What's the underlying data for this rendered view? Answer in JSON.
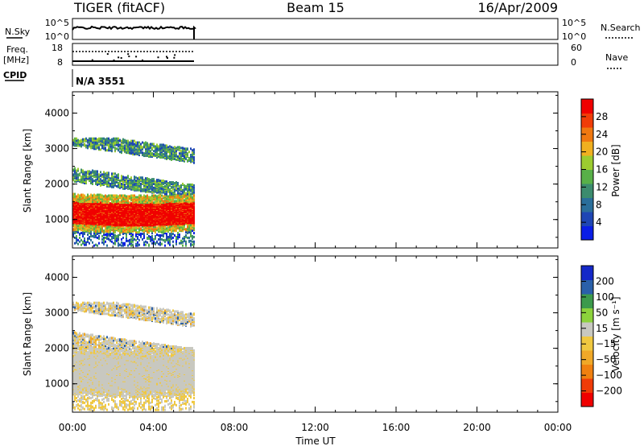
{
  "header": {
    "title": "TIGER (fitACF)",
    "beam": "Beam 15",
    "date": "16/Apr/2009"
  },
  "top_panels": {
    "nsky_label": "N.Sky",
    "nsky_ticks": [
      "10^5",
      "10^0"
    ],
    "nsearch_label": "N.Search",
    "nsearch_ticks": [
      "10^5",
      "10^0"
    ],
    "freq_label_1": "Freq.",
    "freq_label_2": "[MHz]",
    "freq_ticks": [
      "18",
      "8"
    ],
    "nave_label": "Nave",
    "nave_ticks": [
      "60",
      "0"
    ],
    "cpid_label": "CPID",
    "cpid_text": "N/A 3551"
  },
  "colors": {
    "power": [
      "#0a1ee6",
      "#1e46b4",
      "#2a6e9a",
      "#3c8c6e",
      "#58b048",
      "#9ccc30",
      "#f0b020",
      "#f07810",
      "#f03c08",
      "#f00000"
    ],
    "velocity": [
      "#f00000",
      "#f03c08",
      "#f08010",
      "#f0a828",
      "#f0c840",
      "#c8c8c0",
      "#8cd23c",
      "#3c9a4c",
      "#2a60aa",
      "#1428c8"
    ]
  },
  "chart_data": [
    {
      "type": "heatmap",
      "title": "",
      "quantity": "Power",
      "xlabel": "Time UT",
      "ylabel": "Slant Range [km]",
      "colorbar_label": "Power [dB]",
      "colorbar_ticks": [
        "28",
        "24",
        "20",
        "16",
        "12",
        "8",
        "4"
      ],
      "x_ticks": [
        "00:00",
        "04:00",
        "08:00",
        "12:00",
        "16:00",
        "20:00",
        "00:00"
      ],
      "y_ticks": [
        "4000",
        "3000",
        "2000",
        "1000"
      ],
      "xlim_hours": [
        0,
        24
      ],
      "ylim_km": [
        200,
        4600
      ],
      "data_coverage_hours": [
        0,
        6
      ],
      "main_band_km": [
        900,
        1500
      ],
      "main_band_power_db": 30
    },
    {
      "type": "heatmap",
      "title": "",
      "quantity": "Velocity",
      "xlabel": "Time UT",
      "ylabel": "Slant Range [km]",
      "colorbar_label": "Velocity [m s⁻¹]",
      "colorbar_ticks": [
        "200",
        "100",
        "50",
        "15",
        "−15",
        "−50",
        "−100",
        "−200"
      ],
      "x_ticks": [
        "00:00",
        "04:00",
        "08:00",
        "12:00",
        "16:00",
        "20:00",
        "00:00"
      ],
      "y_ticks": [
        "4000",
        "3000",
        "2000",
        "1000"
      ],
      "xlim_hours": [
        0,
        24
      ],
      "ylim_km": [
        200,
        4600
      ],
      "data_coverage_hours": [
        0,
        6
      ],
      "main_band_km": [
        900,
        1800
      ],
      "main_band_velocity": [
        -15,
        15
      ]
    }
  ]
}
